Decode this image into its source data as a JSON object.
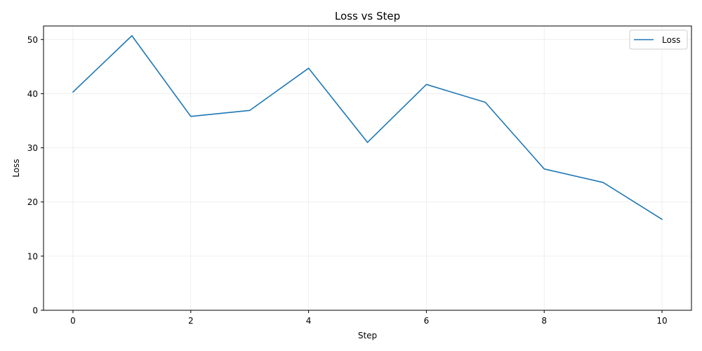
{
  "chart_data": {
    "type": "line",
    "title": "Loss vs Step",
    "xlabel": "Step",
    "ylabel": "Loss",
    "xlim": [
      -0.5,
      10.5
    ],
    "ylim": [
      0,
      52.5
    ],
    "x_ticks": [
      0,
      2,
      4,
      6,
      8,
      10
    ],
    "y_ticks": [
      0,
      10,
      20,
      30,
      40,
      50
    ],
    "grid": true,
    "legend_position": "top-right",
    "series": [
      {
        "name": "Loss",
        "color": "#1f77b4",
        "x": [
          0,
          1,
          2,
          3,
          4,
          5,
          6,
          7,
          8,
          9,
          10
        ],
        "y": [
          40.3,
          50.7,
          35.8,
          36.9,
          44.7,
          31.0,
          41.7,
          38.4,
          26.1,
          23.6,
          16.8
        ]
      }
    ]
  }
}
